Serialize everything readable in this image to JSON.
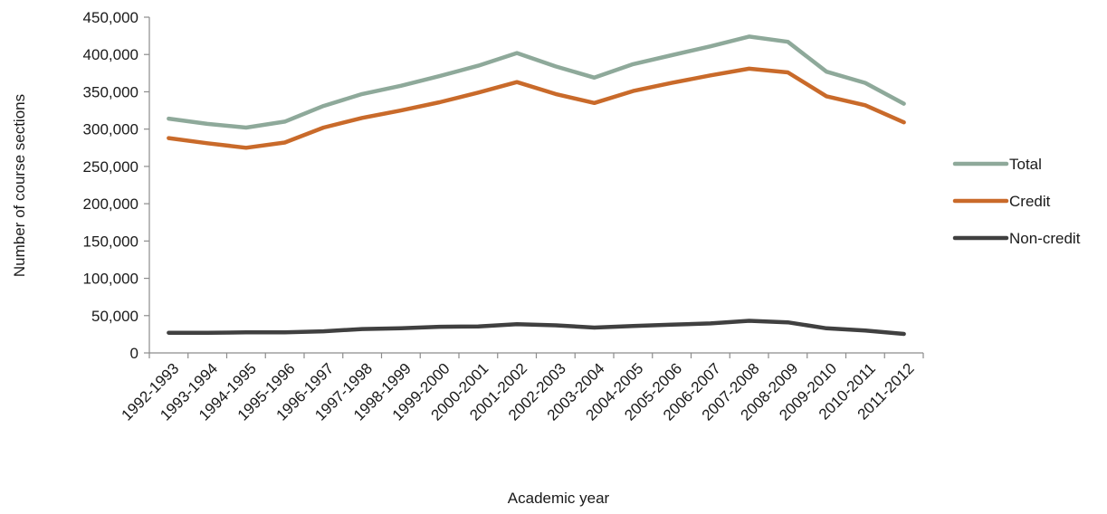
{
  "chart_data": {
    "type": "line",
    "title": "",
    "xlabel": "Academic year",
    "ylabel": "Number of course sections",
    "categories": [
      "1992-1993",
      "1993-1994",
      "1994-1995",
      "1995-1996",
      "1996-1997",
      "1997-1998",
      "1998-1999",
      "1999-2000",
      "2000-2001",
      "2001-2002",
      "2002-2003",
      "2003-2004",
      "2004-2005",
      "2005-2006",
      "2006-2007",
      "2007-2008",
      "2008-2009",
      "2009-2010",
      "2010-2011",
      "2011-2012"
    ],
    "ylim": [
      0,
      450000
    ],
    "yticks": [
      {
        "value": 0,
        "label": "0"
      },
      {
        "value": 50000,
        "label": "50,000"
      },
      {
        "value": 100000,
        "label": "100,000"
      },
      {
        "value": 150000,
        "label": "150,000"
      },
      {
        "value": 200000,
        "label": "200,000"
      },
      {
        "value": 250000,
        "label": "250,000"
      },
      {
        "value": 300000,
        "label": "300,000"
      },
      {
        "value": 350000,
        "label": "350,000"
      },
      {
        "value": 400000,
        "label": "400,000"
      },
      {
        "value": 450000,
        "label": "450,000"
      }
    ],
    "grid": false,
    "legend_position": "right",
    "series": [
      {
        "name": "Total",
        "color": "#8ea99a",
        "values": [
          314000,
          307000,
          302000,
          310000,
          331000,
          347000,
          358000,
          371000,
          385000,
          402000,
          384000,
          369000,
          387000,
          399000,
          411000,
          424000,
          417000,
          377000,
          362000,
          334000
        ]
      },
      {
        "name": "Credit",
        "color": "#c96a2a",
        "values": [
          288000,
          281000,
          275000,
          282000,
          302000,
          315000,
          325000,
          336000,
          349000,
          363000,
          347000,
          335000,
          351000,
          362000,
          372000,
          381000,
          376000,
          344000,
          332000,
          309000
        ]
      },
      {
        "name": "Non-credit",
        "color": "#404040",
        "values": [
          27000,
          27000,
          27500,
          27500,
          29000,
          32000,
          33000,
          35000,
          35500,
          38500,
          37000,
          34000,
          36000,
          38000,
          39500,
          43000,
          41000,
          33000,
          30000,
          25500
        ]
      }
    ]
  }
}
